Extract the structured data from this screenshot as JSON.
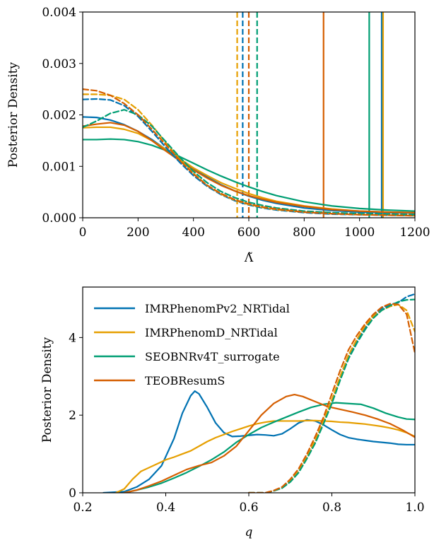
{
  "colors": {
    "blue": "#0072b2",
    "yellow": "#e69f00",
    "green": "#009e73",
    "orange": "#d55e00"
  },
  "chart_data": [
    {
      "type": "line",
      "xlabel": "Λ̃",
      "ylabel": "Posterior Density",
      "xlim": [
        0,
        1200
      ],
      "ylim": [
        0,
        0.004
      ],
      "xticks": [
        "0",
        "200",
        "400",
        "600",
        "800",
        "1000",
        "1200"
      ],
      "yticks": [
        "0.000",
        "0.001",
        "0.002",
        "0.003",
        "0.004"
      ],
      "series": [
        {
          "color": "blue",
          "style": "solid",
          "x": [
            0,
            50,
            100,
            150,
            200,
            250,
            300,
            350,
            400,
            450,
            500,
            550,
            600,
            650,
            700,
            800,
            900,
            1000,
            1100,
            1200
          ],
          "y": [
            0.00196,
            0.00195,
            0.0019,
            0.00181,
            0.00168,
            0.00152,
            0.00133,
            0.00114,
            0.00095,
            0.00079,
            0.00064,
            0.00052,
            0.00042,
            0.00034,
            0.00028,
            0.00019,
            0.00014,
            0.00011,
            0.0001,
            9e-05
          ],
          "vline": 1080
        },
        {
          "color": "yellow",
          "style": "solid",
          "x": [
            0,
            50,
            100,
            150,
            200,
            250,
            300,
            350,
            400,
            450,
            500,
            550,
            600,
            650,
            700,
            800,
            900,
            1000,
            1100,
            1200
          ],
          "y": [
            0.00175,
            0.00176,
            0.00176,
            0.00172,
            0.00164,
            0.0015,
            0.00133,
            0.00115,
            0.00097,
            0.00082,
            0.00068,
            0.00057,
            0.00047,
            0.00039,
            0.00032,
            0.00023,
            0.00017,
            0.00013,
            0.00011,
            0.0001
          ],
          "vline": 1085
        },
        {
          "color": "green",
          "style": "solid",
          "x": [
            0,
            50,
            100,
            150,
            200,
            250,
            300,
            350,
            400,
            450,
            500,
            550,
            600,
            650,
            700,
            800,
            900,
            1000,
            1100,
            1200
          ],
          "y": [
            0.00152,
            0.00152,
            0.00153,
            0.00152,
            0.00148,
            0.00141,
            0.00131,
            0.00119,
            0.00106,
            0.00093,
            0.00081,
            0.0007,
            0.0006,
            0.00051,
            0.00043,
            0.00031,
            0.00023,
            0.00018,
            0.00015,
            0.00013
          ],
          "vline": 1035
        },
        {
          "color": "orange",
          "style": "solid",
          "x": [
            0,
            50,
            100,
            150,
            200,
            250,
            300,
            350,
            400,
            450,
            500,
            550,
            600,
            650,
            700,
            800,
            900,
            1000,
            1100,
            1200
          ],
          "y": [
            0.00178,
            0.00182,
            0.00185,
            0.0018,
            0.00168,
            0.0015,
            0.0013,
            0.00111,
            0.00093,
            0.00077,
            0.00063,
            0.00052,
            0.00043,
            0.00036,
            0.0003,
            0.00022,
            0.00016,
            0.00013,
            0.00011,
            0.0001
          ],
          "vline": 870
        },
        {
          "color": "blue",
          "style": "dashed",
          "x": [
            0,
            50,
            100,
            150,
            200,
            250,
            300,
            350,
            400,
            450,
            500,
            550,
            600,
            650,
            700,
            800,
            900,
            1000,
            1100,
            1200
          ],
          "y": [
            0.0023,
            0.00231,
            0.00229,
            0.00218,
            0.00197,
            0.00168,
            0.00137,
            0.00108,
            0.00082,
            0.00061,
            0.00045,
            0.00033,
            0.00025,
            0.00019,
            0.00015,
            0.0001,
            7e-05,
            6e-05,
            5e-05,
            4e-05
          ],
          "vline": 578
        },
        {
          "color": "yellow",
          "style": "dashed",
          "x": [
            0,
            50,
            100,
            150,
            200,
            250,
            300,
            350,
            400,
            450,
            500,
            550,
            600,
            650,
            700,
            800,
            900,
            1000,
            1100,
            1200
          ],
          "y": [
            0.0024,
            0.0024,
            0.00238,
            0.0023,
            0.0021,
            0.0018,
            0.00146,
            0.00114,
            0.00086,
            0.00063,
            0.00046,
            0.00034,
            0.00026,
            0.0002,
            0.00016,
            0.00011,
            8e-05,
            6e-05,
            5e-05,
            4e-05
          ],
          "vline": 558
        },
        {
          "color": "green",
          "style": "dashed",
          "x": [
            0,
            50,
            100,
            150,
            200,
            250,
            300,
            350,
            400,
            450,
            500,
            550,
            600,
            650,
            700,
            800,
            900,
            1000,
            1100,
            1200
          ],
          "y": [
            0.00176,
            0.00188,
            0.00203,
            0.0021,
            0.002,
            0.00178,
            0.00148,
            0.00118,
            0.0009,
            0.00068,
            0.00051,
            0.00039,
            0.0003,
            0.00024,
            0.00019,
            0.00013,
            0.0001,
            8e-05,
            7e-05,
            6e-05
          ],
          "vline": 630
        },
        {
          "color": "orange",
          "style": "dashed",
          "x": [
            0,
            50,
            100,
            150,
            200,
            250,
            300,
            350,
            400,
            450,
            500,
            550,
            600,
            650,
            700,
            800,
            900,
            1000,
            1100,
            1200
          ],
          "y": [
            0.0025,
            0.00247,
            0.00238,
            0.00222,
            0.002,
            0.00172,
            0.00142,
            0.00112,
            0.00085,
            0.00063,
            0.00047,
            0.00035,
            0.00027,
            0.00021,
            0.00017,
            0.00011,
            8e-05,
            6e-05,
            5e-05,
            4e-05
          ],
          "vline": 600
        }
      ]
    },
    {
      "type": "line",
      "xlabel": "q",
      "ylabel": "Posterior Density",
      "xlim": [
        0.2,
        1.0
      ],
      "ylim": [
        0,
        5.3
      ],
      "xticks": [
        "0.2",
        "0.4",
        "0.6",
        "0.8",
        "1.0"
      ],
      "yticks": [
        "0",
        "2",
        "4"
      ],
      "legend_position": "top-left",
      "series": [
        {
          "name": "IMRPhenomPv2_NRTidal",
          "color": "blue",
          "style": "solid",
          "x": [
            0.25,
            0.3,
            0.33,
            0.36,
            0.39,
            0.42,
            0.44,
            0.46,
            0.47,
            0.48,
            0.5,
            0.52,
            0.54,
            0.56,
            0.58,
            0.6,
            0.62,
            0.64,
            0.66,
            0.68,
            0.7,
            0.72,
            0.74,
            0.76,
            0.78,
            0.8,
            0.82,
            0.84,
            0.86,
            0.88,
            0.9,
            0.92,
            0.94,
            0.96,
            0.98,
            1.0
          ],
          "y": [
            0.0,
            0.03,
            0.15,
            0.35,
            0.7,
            1.4,
            2.05,
            2.5,
            2.62,
            2.55,
            2.2,
            1.8,
            1.55,
            1.45,
            1.46,
            1.48,
            1.5,
            1.49,
            1.47,
            1.52,
            1.65,
            1.8,
            1.88,
            1.85,
            1.75,
            1.62,
            1.5,
            1.42,
            1.38,
            1.35,
            1.32,
            1.3,
            1.28,
            1.25,
            1.24,
            1.24
          ]
        },
        {
          "name": "IMRPhenomD_NRTidal",
          "color": "yellow",
          "style": "solid",
          "x": [
            0.28,
            0.3,
            0.32,
            0.34,
            0.36,
            0.38,
            0.4,
            0.42,
            0.44,
            0.46,
            0.48,
            0.5,
            0.52,
            0.54,
            0.56,
            0.58,
            0.6,
            0.62,
            0.64,
            0.66,
            0.68,
            0.7,
            0.72,
            0.74,
            0.76,
            0.78,
            0.8,
            0.82,
            0.84,
            0.86,
            0.88,
            0.9,
            0.92,
            0.94,
            0.96,
            0.98,
            1.0
          ],
          "y": [
            0.0,
            0.1,
            0.35,
            0.55,
            0.65,
            0.75,
            0.85,
            0.92,
            1.0,
            1.08,
            1.2,
            1.32,
            1.42,
            1.5,
            1.58,
            1.65,
            1.72,
            1.78,
            1.82,
            1.85,
            1.85,
            1.85,
            1.85,
            1.86,
            1.86,
            1.85,
            1.84,
            1.82,
            1.81,
            1.79,
            1.77,
            1.74,
            1.71,
            1.67,
            1.62,
            1.55,
            1.45
          ]
        },
        {
          "name": "SEOBNRv4T_surrogate",
          "color": "green",
          "style": "solid",
          "x": [
            0.3,
            0.33,
            0.36,
            0.39,
            0.42,
            0.45,
            0.48,
            0.51,
            0.54,
            0.57,
            0.6,
            0.63,
            0.66,
            0.69,
            0.72,
            0.75,
            0.78,
            0.81,
            0.84,
            0.87,
            0.9,
            0.93,
            0.96,
            0.98,
            1.0
          ],
          "y": [
            0.0,
            0.07,
            0.15,
            0.25,
            0.38,
            0.52,
            0.68,
            0.85,
            1.05,
            1.3,
            1.5,
            1.68,
            1.82,
            1.95,
            2.08,
            2.2,
            2.28,
            2.32,
            2.3,
            2.28,
            2.18,
            2.05,
            1.95,
            1.9,
            1.89
          ]
        },
        {
          "name": "TEOBResumS",
          "color": "orange",
          "style": "solid",
          "x": [
            0.3,
            0.33,
            0.36,
            0.39,
            0.42,
            0.45,
            0.48,
            0.51,
            0.54,
            0.57,
            0.6,
            0.63,
            0.66,
            0.69,
            0.71,
            0.73,
            0.76,
            0.79,
            0.82,
            0.85,
            0.88,
            0.91,
            0.94,
            0.97,
            1.0
          ],
          "y": [
            0.0,
            0.07,
            0.18,
            0.3,
            0.45,
            0.6,
            0.7,
            0.78,
            0.95,
            1.2,
            1.6,
            2.0,
            2.3,
            2.48,
            2.53,
            2.48,
            2.35,
            2.22,
            2.15,
            2.08,
            2.0,
            1.9,
            1.78,
            1.62,
            1.43
          ]
        },
        {
          "color": "blue",
          "style": "dashed",
          "x": [
            0.6,
            0.64,
            0.66,
            0.68,
            0.7,
            0.72,
            0.74,
            0.76,
            0.78,
            0.8,
            0.82,
            0.84,
            0.86,
            0.88,
            0.9,
            0.92,
            0.94,
            0.96,
            0.98,
            1.0
          ],
          "y": [
            0.0,
            0.0,
            0.05,
            0.12,
            0.3,
            0.55,
            0.9,
            1.3,
            1.8,
            2.35,
            2.95,
            3.5,
            3.9,
            4.25,
            4.55,
            4.75,
            4.85,
            4.9,
            5.05,
            5.12
          ]
        },
        {
          "color": "yellow",
          "style": "dashed",
          "x": [
            0.6,
            0.64,
            0.66,
            0.68,
            0.7,
            0.72,
            0.74,
            0.76,
            0.78,
            0.8,
            0.82,
            0.84,
            0.86,
            0.88,
            0.9,
            0.92,
            0.94,
            0.96,
            0.98,
            1.0
          ],
          "y": [
            0.0,
            0.0,
            0.05,
            0.12,
            0.3,
            0.55,
            0.92,
            1.35,
            1.85,
            2.4,
            3.0,
            3.55,
            3.95,
            4.3,
            4.55,
            4.7,
            4.8,
            4.85,
            4.7,
            4.15
          ]
        },
        {
          "color": "green",
          "style": "dashed",
          "x": [
            0.6,
            0.64,
            0.66,
            0.68,
            0.7,
            0.72,
            0.74,
            0.76,
            0.78,
            0.8,
            0.82,
            0.84,
            0.86,
            0.88,
            0.9,
            0.92,
            0.94,
            0.96,
            0.98,
            1.0
          ],
          "y": [
            0.0,
            0.0,
            0.05,
            0.12,
            0.28,
            0.52,
            0.88,
            1.28,
            1.78,
            2.3,
            2.9,
            3.45,
            3.85,
            4.2,
            4.5,
            4.7,
            4.82,
            4.92,
            4.97,
            4.98
          ]
        },
        {
          "color": "orange",
          "style": "dashed",
          "x": [
            0.6,
            0.64,
            0.66,
            0.68,
            0.7,
            0.72,
            0.74,
            0.76,
            0.78,
            0.8,
            0.82,
            0.84,
            0.86,
            0.88,
            0.9,
            0.92,
            0.94,
            0.96,
            0.98,
            1.0
          ],
          "y": [
            0.0,
            0.0,
            0.06,
            0.15,
            0.35,
            0.62,
            1.0,
            1.45,
            1.95,
            2.55,
            3.15,
            3.68,
            4.05,
            4.35,
            4.6,
            4.78,
            4.87,
            4.85,
            4.6,
            3.6
          ]
        }
      ]
    }
  ]
}
